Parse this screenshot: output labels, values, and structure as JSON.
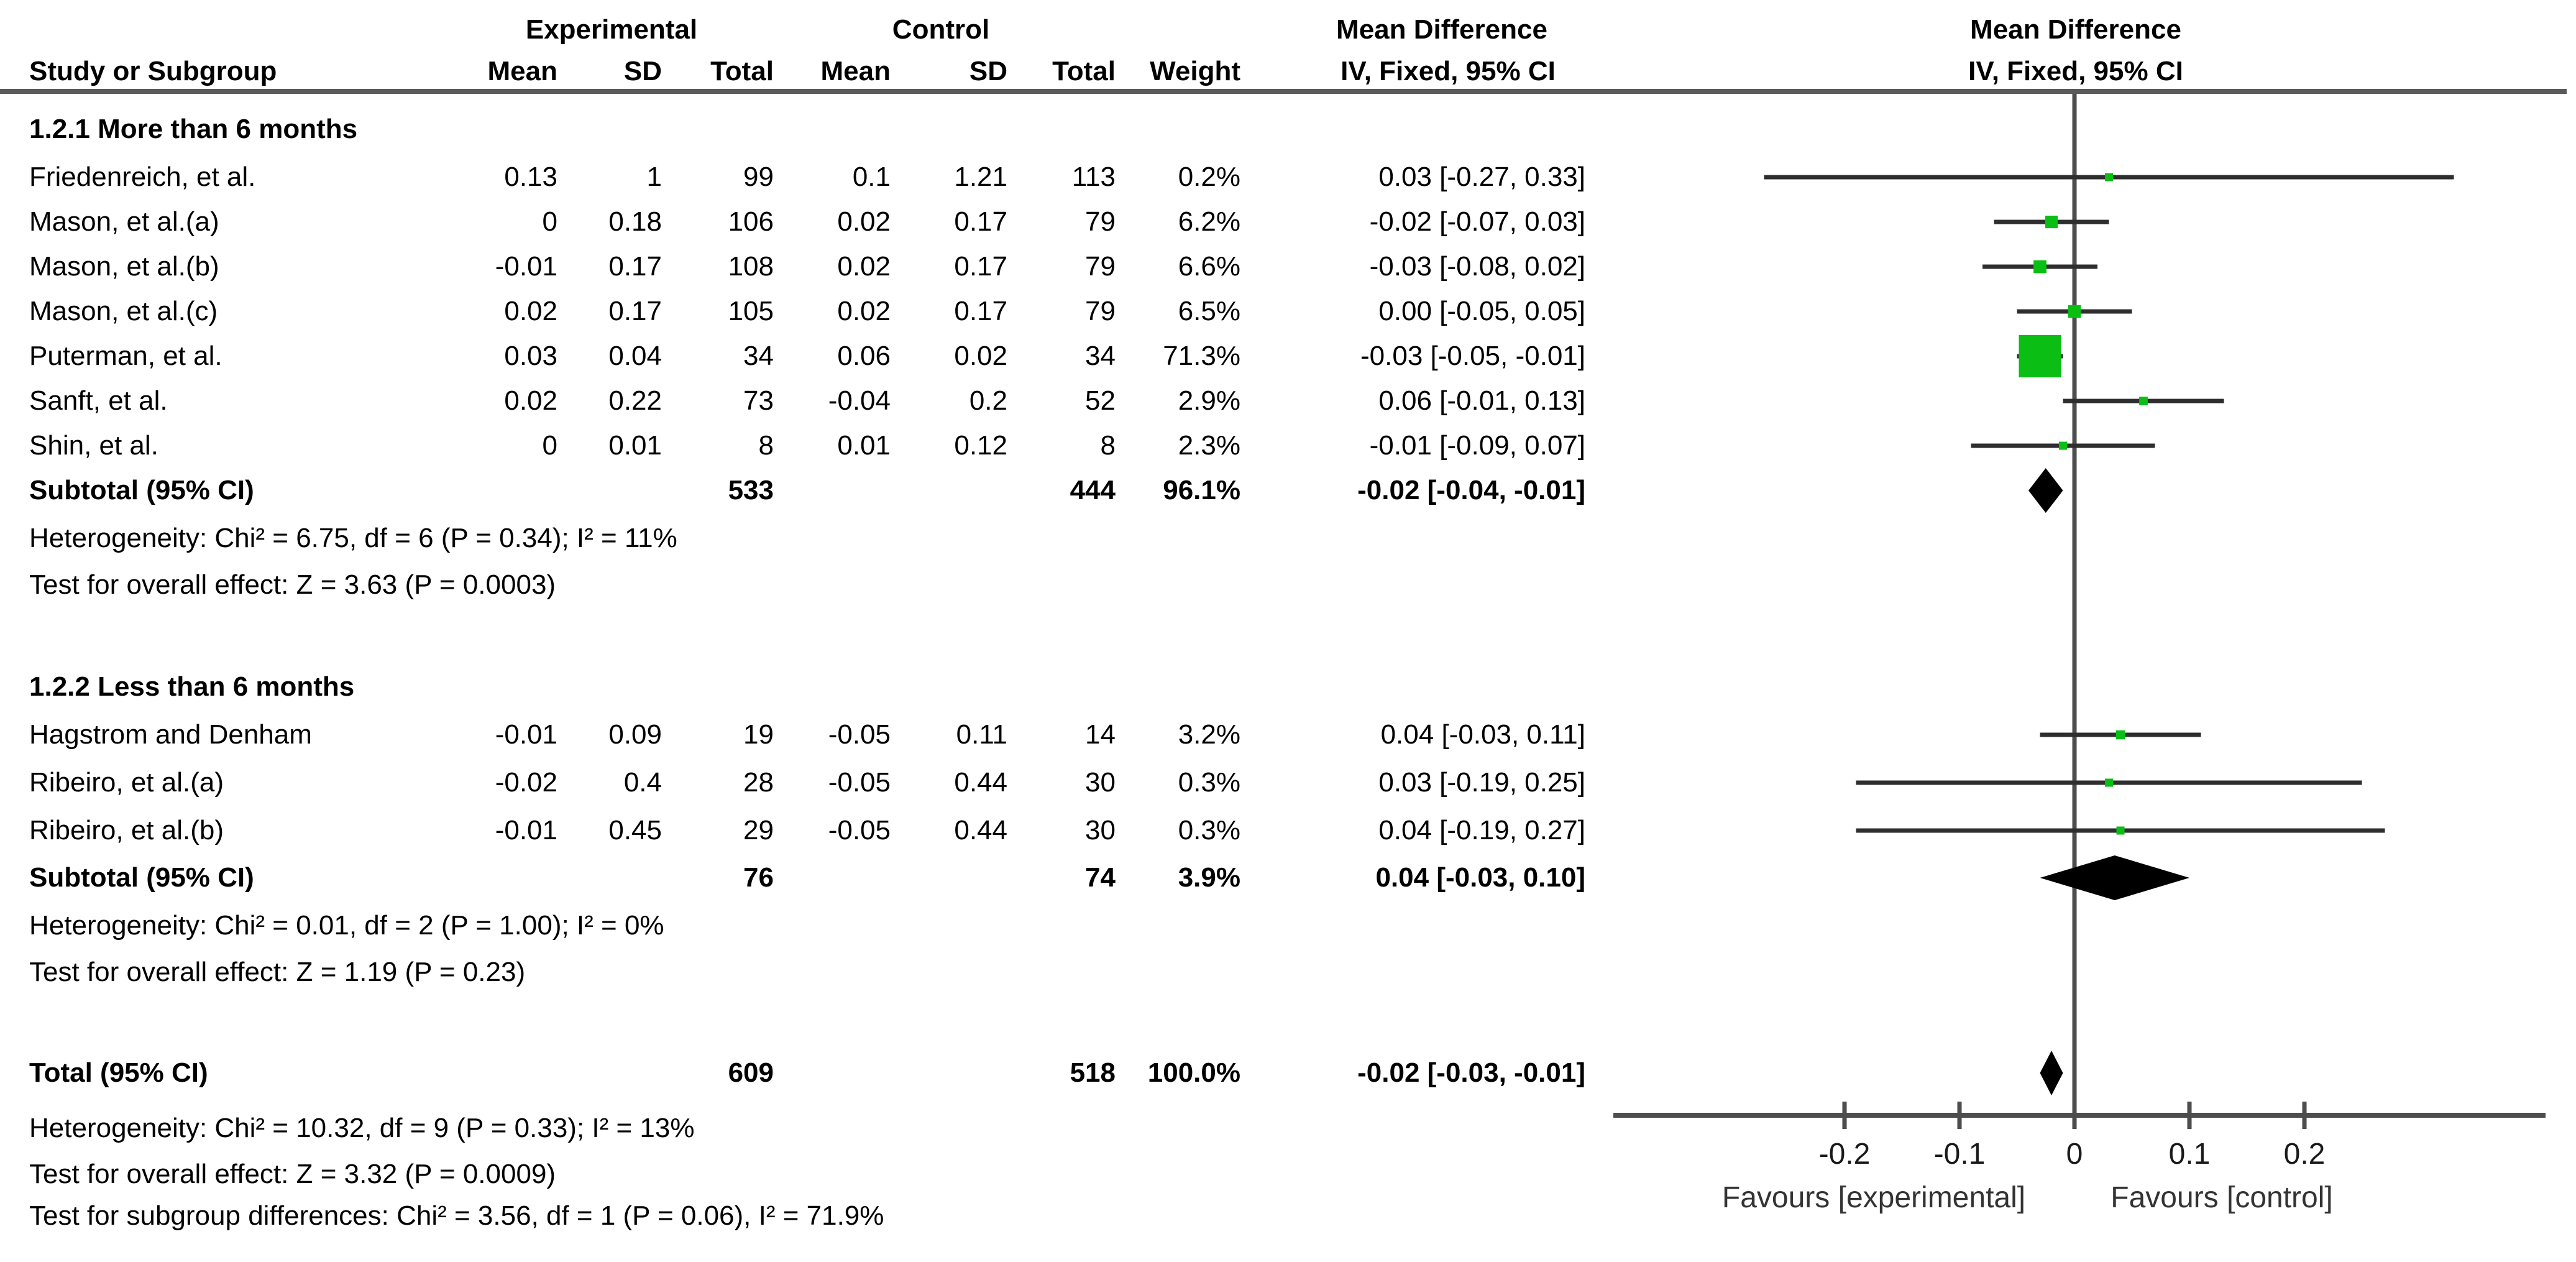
{
  "columns": {
    "group_exp": "Experimental",
    "group_ctl": "Control",
    "md_text_col": "Mean Difference",
    "md_plot_col": "Mean Difference",
    "study": "Study or Subgroup",
    "mean_exp": "Mean",
    "sd_exp": "SD",
    "total_exp": "Total",
    "mean_ctl": "Mean",
    "sd_ctl": "SD",
    "total_ctl": "Total",
    "weight": "Weight",
    "iv_text_col": "IV, Fixed, 95% CI",
    "iv_plot_col": "IV, Fixed, 95% CI"
  },
  "colors": {
    "marker_green": "#0abe14",
    "diamond_black": "#000000",
    "ci_line": "#2e2e2e",
    "axis_gray": "#4d4d4d",
    "rule_gray": "#5a5a5a",
    "text_black": "#000000"
  },
  "chart_data": {
    "type": "forest",
    "effect_measure": "Mean Difference",
    "method": "IV, Fixed, 95% CI",
    "xlim": [
      -0.3,
      0.41
    ],
    "x_tick_values": [
      -0.2,
      -0.1,
      0,
      0.1,
      0.2
    ],
    "x_tick_labels": [
      "-0.2",
      "-0.1",
      "0",
      "0.1",
      "0.2"
    ],
    "favours_left": "Favours [experimental]",
    "favours_right": "Favours [control]",
    "groups": [
      {
        "heading": "1.2.1 More than 6 months",
        "studies": [
          {
            "name": "Friedenreich, et al.",
            "mean_e": "0.13",
            "sd_e": "1",
            "total_e": "99",
            "mean_c": "0.1",
            "sd_c": "1.21",
            "total_c": "113",
            "weight": "0.2%",
            "weight_pct": 0.2,
            "ci_text": "0.03 [-0.27, 0.33]",
            "md": 0.03,
            "lo": -0.27,
            "hi": 0.33
          },
          {
            "name": "Mason, et al.(a)",
            "mean_e": "0",
            "sd_e": "0.18",
            "total_e": "106",
            "mean_c": "0.02",
            "sd_c": "0.17",
            "total_c": "79",
            "weight": "6.2%",
            "weight_pct": 6.2,
            "ci_text": "-0.02 [-0.07, 0.03]",
            "md": -0.02,
            "lo": -0.07,
            "hi": 0.03
          },
          {
            "name": "Mason, et al.(b)",
            "mean_e": "-0.01",
            "sd_e": "0.17",
            "total_e": "108",
            "mean_c": "0.02",
            "sd_c": "0.17",
            "total_c": "79",
            "weight": "6.6%",
            "weight_pct": 6.6,
            "ci_text": "-0.03 [-0.08, 0.02]",
            "md": -0.03,
            "lo": -0.08,
            "hi": 0.02
          },
          {
            "name": "Mason, et al.(c)",
            "mean_e": "0.02",
            "sd_e": "0.17",
            "total_e": "105",
            "mean_c": "0.02",
            "sd_c": "0.17",
            "total_c": "79",
            "weight": "6.5%",
            "weight_pct": 6.5,
            "ci_text": "0.00 [-0.05, 0.05]",
            "md": 0.0,
            "lo": -0.05,
            "hi": 0.05
          },
          {
            "name": "Puterman, et al.",
            "mean_e": "0.03",
            "sd_e": "0.04",
            "total_e": "34",
            "mean_c": "0.06",
            "sd_c": "0.02",
            "total_c": "34",
            "weight": "71.3%",
            "weight_pct": 71.3,
            "ci_text": "-0.03 [-0.05, -0.01]",
            "md": -0.03,
            "lo": -0.05,
            "hi": -0.01
          },
          {
            "name": "Sanft, et al.",
            "mean_e": "0.02",
            "sd_e": "0.22",
            "total_e": "73",
            "mean_c": "-0.04",
            "sd_c": "0.2",
            "total_c": "52",
            "weight": "2.9%",
            "weight_pct": 2.9,
            "ci_text": "0.06 [-0.01, 0.13]",
            "md": 0.06,
            "lo": -0.01,
            "hi": 0.13
          },
          {
            "name": "Shin, et al.",
            "mean_e": "0",
            "sd_e": "0.01",
            "total_e": "8",
            "mean_c": "0.01",
            "sd_c": "0.12",
            "total_c": "8",
            "weight": "2.3%",
            "weight_pct": 2.3,
            "ci_text": "-0.01 [-0.09, 0.07]",
            "md": -0.01,
            "lo": -0.09,
            "hi": 0.07
          }
        ],
        "subtotal": {
          "label": "Subtotal (95% CI)",
          "total_e": "533",
          "total_c": "444",
          "weight": "96.1%",
          "ci_text": "-0.02 [-0.04, -0.01]",
          "lo": -0.04,
          "hi": -0.01
        },
        "heterogeneity": "Heterogeneity: Chi² = 6.75, df = 6 (P = 0.34); I² = 11%",
        "overall_effect": "Test for overall effect: Z = 3.63 (P = 0.0003)"
      },
      {
        "heading": "1.2.2 Less than 6 months",
        "studies": [
          {
            "name": "Hagstrom and Denham",
            "mean_e": "-0.01",
            "sd_e": "0.09",
            "total_e": "19",
            "mean_c": "-0.05",
            "sd_c": "0.11",
            "total_c": "14",
            "weight": "3.2%",
            "weight_pct": 3.2,
            "ci_text": "0.04 [-0.03, 0.11]",
            "md": 0.04,
            "lo": -0.03,
            "hi": 0.11
          },
          {
            "name": "Ribeiro, et al.(a)",
            "mean_e": "-0.02",
            "sd_e": "0.4",
            "total_e": "28",
            "mean_c": "-0.05",
            "sd_c": "0.44",
            "total_c": "30",
            "weight": "0.3%",
            "weight_pct": 0.3,
            "ci_text": "0.03 [-0.19, 0.25]",
            "md": 0.03,
            "lo": -0.19,
            "hi": 0.25
          },
          {
            "name": "Ribeiro, et al.(b)",
            "mean_e": "-0.01",
            "sd_e": "0.45",
            "total_e": "29",
            "mean_c": "-0.05",
            "sd_c": "0.44",
            "total_c": "30",
            "weight": "0.3%",
            "weight_pct": 0.3,
            "ci_text": "0.04 [-0.19, 0.27]",
            "md": 0.04,
            "lo": -0.19,
            "hi": 0.27
          }
        ],
        "subtotal": {
          "label": "Subtotal (95% CI)",
          "total_e": "76",
          "total_c": "74",
          "weight": "3.9%",
          "ci_text": "0.04 [-0.03, 0.10]",
          "lo": -0.03,
          "hi": 0.1
        },
        "heterogeneity": "Heterogeneity: Chi² = 0.01, df = 2 (P = 1.00); I² = 0%",
        "overall_effect": "Test for overall effect: Z = 1.19 (P = 0.23)"
      }
    ],
    "total": {
      "label": "Total (95% CI)",
      "total_e": "609",
      "total_c": "518",
      "weight": "100.0%",
      "ci_text": "-0.02 [-0.03, -0.01]",
      "lo": -0.03,
      "hi": -0.01,
      "heterogeneity": "Heterogeneity: Chi² = 10.32, df = 9 (P = 0.33); I² = 13%",
      "overall_effect": "Test for overall effect: Z = 3.32 (P = 0.0009)",
      "subgroup_differences": "Test for subgroup differences: Chi² = 3.56, df = 1 (P = 0.06), I² = 71.9%"
    }
  }
}
